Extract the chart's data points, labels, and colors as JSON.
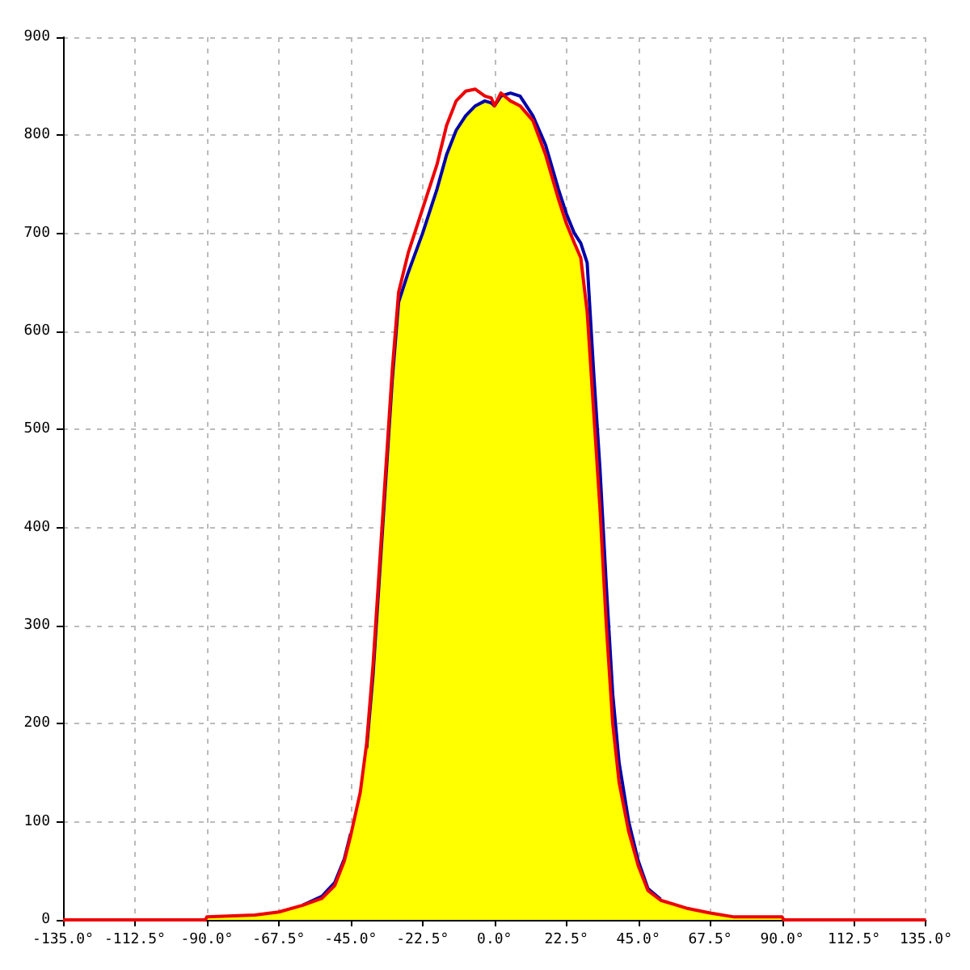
{
  "chart_data": {
    "type": "line",
    "x": [
      -135,
      -90.5,
      -90,
      -75,
      -67.5,
      -60,
      -54,
      -50,
      -47,
      -45,
      -42,
      -40,
      -38,
      -36,
      -34,
      -32,
      -30,
      -27,
      -22.5,
      -18,
      -15,
      -12,
      -9,
      -6,
      -3,
      -1,
      0,
      2,
      5,
      8,
      12,
      16,
      20,
      22.5,
      25,
      27,
      29,
      31,
      33,
      35,
      37,
      39,
      42,
      45,
      48,
      52,
      60,
      67.5,
      75,
      90,
      90.5,
      135
    ],
    "series": [
      {
        "type": "area",
        "color": "#ffff00",
        "values": [
          0,
          0,
          3,
          5,
          8,
          15,
          22,
          35,
          60,
          86,
          130,
          175,
          250,
          350,
          450,
          550,
          630,
          660,
          700,
          745,
          780,
          805,
          820,
          830,
          835,
          833,
          830,
          840,
          835,
          830,
          815,
          780,
          735,
          710,
          690,
          675,
          620,
          520,
          420,
          300,
          200,
          140,
          90,
          55,
          30,
          20,
          12,
          7,
          3,
          3,
          0,
          0
        ]
      },
      {
        "color": "#0000aa",
        "values": [
          null,
          null,
          null,
          null,
          null,
          15,
          24,
          38,
          62,
          88,
          null,
          175,
          250,
          350,
          450,
          550,
          630,
          660,
          700,
          745,
          780,
          805,
          820,
          830,
          835,
          833,
          830,
          840,
          843,
          840,
          820,
          790,
          745,
          720,
          700,
          690,
          670,
          560,
          460,
          340,
          230,
          160,
          100,
          60,
          32,
          21,
          null,
          null,
          null,
          null,
          null,
          null
        ]
      },
      {
        "color": "#ee0000",
        "values": [
          0,
          0,
          3,
          5,
          8,
          15,
          22,
          35,
          60,
          86,
          130,
          180,
          260,
          360,
          460,
          560,
          640,
          680,
          725,
          770,
          810,
          835,
          845,
          847,
          840,
          838,
          830,
          843,
          835,
          830,
          815,
          780,
          735,
          710,
          690,
          675,
          620,
          520,
          420,
          300,
          200,
          140,
          90,
          55,
          30,
          20,
          12,
          7,
          3,
          3,
          0,
          0
        ]
      }
    ],
    "xlim": [
      -135,
      135
    ],
    "xticks": [
      {
        "value": -135,
        "label": "-135.0°"
      },
      {
        "value": -112.5,
        "label": "-112.5°"
      },
      {
        "value": -90,
        "label": "-90.0°"
      },
      {
        "value": -67.5,
        "label": "-67.5°"
      },
      {
        "value": -45,
        "label": "-45.0°"
      },
      {
        "value": -22.5,
        "label": "-22.5°"
      },
      {
        "value": 0,
        "label": "0.0°"
      },
      {
        "value": 22.5,
        "label": "22.5°"
      },
      {
        "value": 45,
        "label": "45.0°"
      },
      {
        "value": 67.5,
        "label": "67.5°"
      },
      {
        "value": 90,
        "label": "90.0°"
      },
      {
        "value": 112.5,
        "label": "112.5°"
      },
      {
        "value": 135,
        "label": "135.0°"
      }
    ],
    "ylim": [
      0,
      900
    ],
    "yticks": [
      0,
      100,
      200,
      300,
      400,
      500,
      600,
      700,
      800,
      900
    ],
    "grid": true,
    "marker": "none",
    "line_style": "solid"
  }
}
